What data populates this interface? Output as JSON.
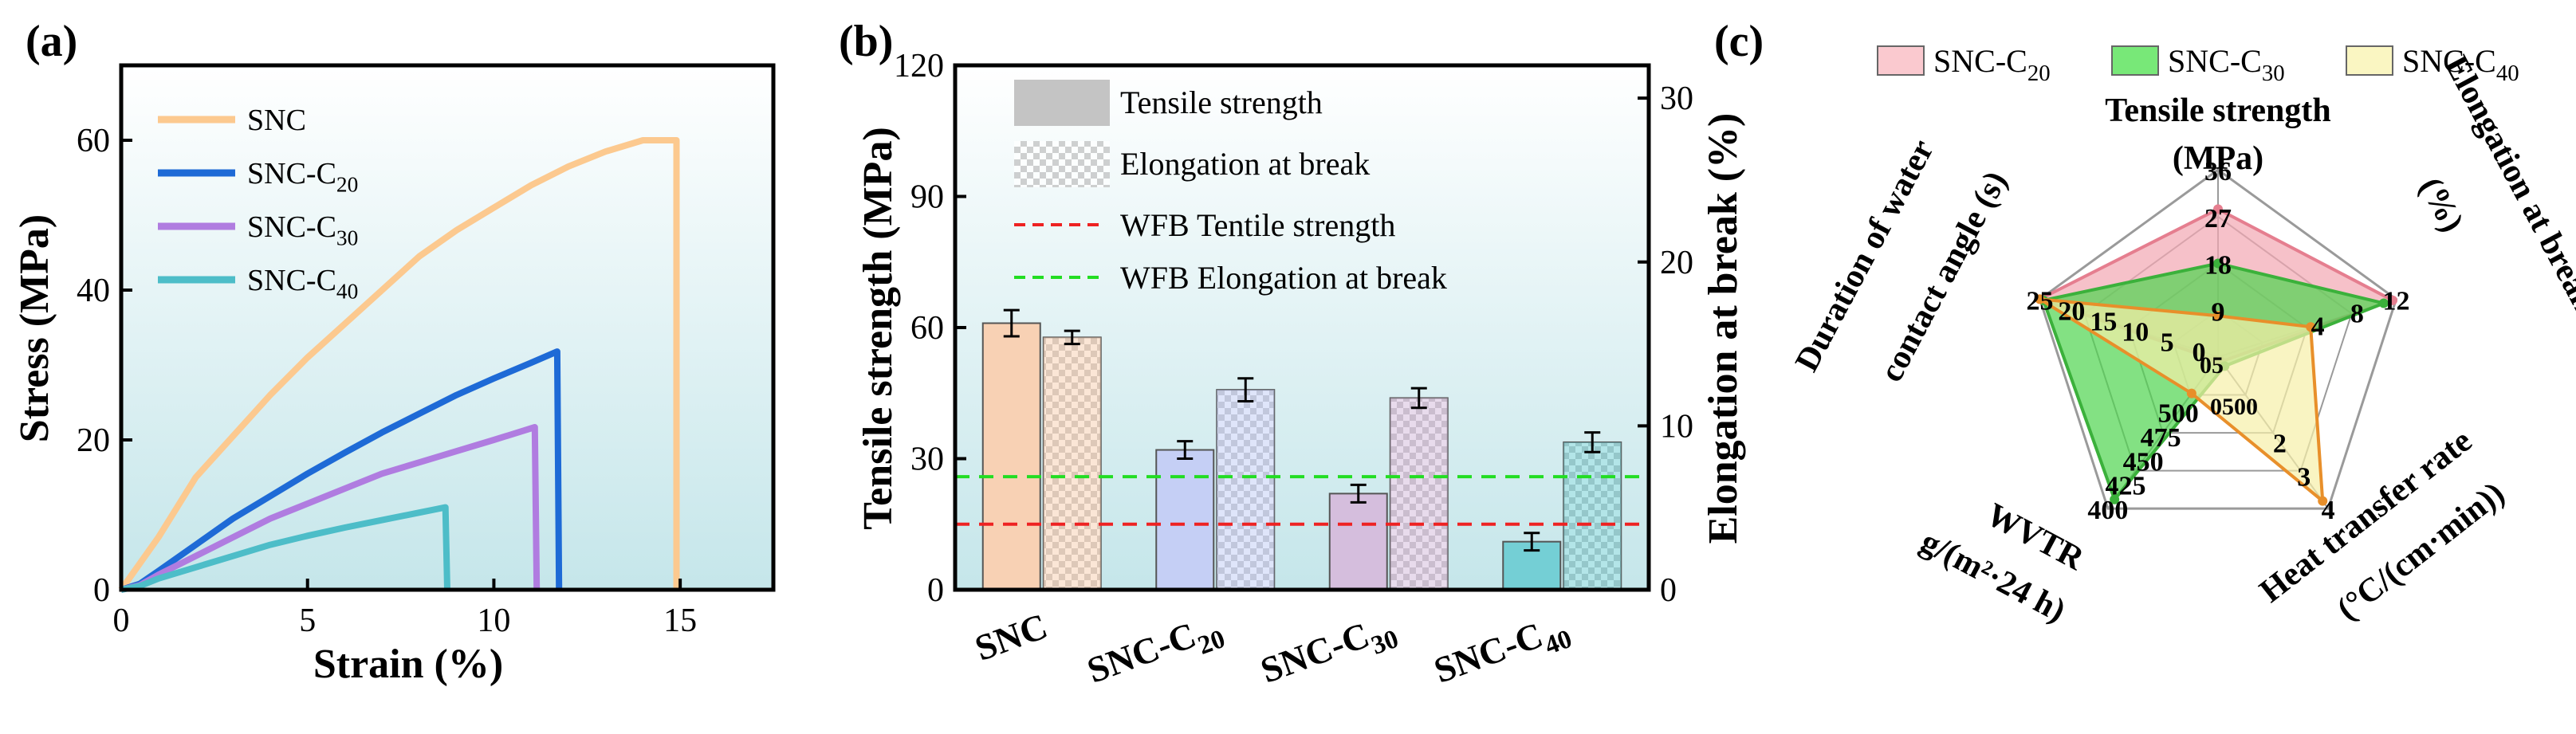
{
  "chart_data": [
    {
      "panel": "(a)",
      "type": "line",
      "title": "",
      "xlabel": "Strain (%)",
      "ylabel": "Stress (MPa)",
      "xlim": [
        0,
        17.5
      ],
      "ylim": [
        0,
        70
      ],
      "xticks": [
        "0",
        "5",
        "10",
        "15"
      ],
      "yticks": [
        "0",
        "20",
        "40",
        "60"
      ],
      "legend": "top-left",
      "colors": {
        "SNC": "#FCC98F",
        "SNC-C20": "#1E6AD6",
        "SNC-C30": "#B07CE0",
        "SNC-C40": "#4DBDC8",
        "bg_top": "#ffffff",
        "bg_bottom": "#C5E6EA"
      },
      "series": [
        {
          "name": "SNC",
          "name_base": "SNC",
          "name_sub": "",
          "color_key": "SNC",
          "points": [
            [
              0,
              0
            ],
            [
              1,
              7
            ],
            [
              2,
              15
            ],
            [
              3,
              20.5
            ],
            [
              4,
              26
            ],
            [
              5,
              31
            ],
            [
              6,
              35.5
            ],
            [
              7,
              40
            ],
            [
              8,
              44.5
            ],
            [
              9,
              48
            ],
            [
              10,
              51
            ],
            [
              11,
              54
            ],
            [
              12,
              56.5
            ],
            [
              13,
              58.5
            ],
            [
              14,
              60
            ],
            [
              14.9,
              60
            ],
            [
              14.9,
              0
            ]
          ]
        },
        {
          "name": "SNC-C20",
          "name_base": "SNC-C",
          "name_sub": "20",
          "color_key": "SNC-C20",
          "points": [
            [
              0,
              0
            ],
            [
              0.5,
              0.8
            ],
            [
              1,
              2.5
            ],
            [
              2,
              6
            ],
            [
              3,
              9.5
            ],
            [
              4,
              12.5
            ],
            [
              5,
              15.5
            ],
            [
              6,
              18.3
            ],
            [
              7,
              21
            ],
            [
              8,
              23.5
            ],
            [
              9,
              26
            ],
            [
              10,
              28.2
            ],
            [
              11,
              30.3
            ],
            [
              11.7,
              31.8
            ],
            [
              11.75,
              0
            ]
          ]
        },
        {
          "name": "SNC-C30",
          "name_base": "SNC-C",
          "name_sub": "30",
          "color_key": "SNC-C30",
          "points": [
            [
              0,
              0
            ],
            [
              0.5,
              0.6
            ],
            [
              1,
              2
            ],
            [
              2,
              4.5
            ],
            [
              3,
              7
            ],
            [
              4,
              9.5
            ],
            [
              5,
              11.5
            ],
            [
              6,
              13.5
            ],
            [
              7,
              15.5
            ],
            [
              8,
              17
            ],
            [
              9,
              18.5
            ],
            [
              10,
              20
            ],
            [
              11.1,
              21.7
            ],
            [
              11.15,
              0
            ]
          ]
        },
        {
          "name": "SNC-C40",
          "name_base": "SNC-C",
          "name_sub": "40",
          "color_key": "SNC-C40",
          "points": [
            [
              0,
              0
            ],
            [
              0.5,
              0.5
            ],
            [
              1,
              1.5
            ],
            [
              2,
              3
            ],
            [
              3,
              4.5
            ],
            [
              4,
              6
            ],
            [
              5,
              7.2
            ],
            [
              6,
              8.3
            ],
            [
              7,
              9.3
            ],
            [
              8,
              10.3
            ],
            [
              8.7,
              11
            ],
            [
              8.75,
              0
            ]
          ]
        }
      ]
    },
    {
      "panel": "(b)",
      "type": "bar",
      "title": "",
      "xlabel": "",
      "ylabel": "Tensile strength (MPa)",
      "y2label": "Elongation at break (%)",
      "ylim": [
        0,
        120
      ],
      "y2lim": [
        0,
        32
      ],
      "yticks": [
        "0",
        "30",
        "60",
        "90",
        "120"
      ],
      "y2ticks": [
        "0",
        "10",
        "20",
        "30"
      ],
      "categories": [
        {
          "base": "SNC",
          "sub": ""
        },
        {
          "base": "SNC-C",
          "sub": "20"
        },
        {
          "base": "SNC-C",
          "sub": "30"
        },
        {
          "base": "SNC-C",
          "sub": "40"
        }
      ],
      "bar_colors": [
        "#F8D1B4",
        "#C5CFF5",
        "#D5BEDD",
        "#74CFD5"
      ],
      "series": [
        {
          "name": "Tensile strength",
          "axis": "left",
          "values": [
            61,
            32,
            22,
            11
          ],
          "errors": [
            3,
            2,
            2,
            2
          ]
        },
        {
          "name": "Elongation at break",
          "axis": "right",
          "values": [
            15.4,
            12.2,
            11.7,
            9.0
          ],
          "errors": [
            0.4,
            0.7,
            0.6,
            0.6
          ]
        }
      ],
      "reference_lines": [
        {
          "name": "WFB Tentile strength",
          "axis": "left",
          "value": 15,
          "color": "#EE2222"
        },
        {
          "name": "WFB Elongation at break",
          "axis": "right",
          "value": 6.9,
          "color": "#22DD22"
        }
      ],
      "legend": "top-left"
    },
    {
      "panel": "(c)",
      "type": "radar",
      "axes": [
        {
          "label_lines": [
            "Tensile strength",
            "(MPa)"
          ],
          "ticks": [
            "9",
            "18",
            "27",
            "36"
          ]
        },
        {
          "label_lines": [
            "Elongation at break",
            "(%)"
          ],
          "ticks": [
            "4",
            "8",
            "12"
          ]
        },
        {
          "label_lines": [
            "Heat transfer rate",
            "(°C/(cm·min))"
          ],
          "ticks": [
            "2",
            "3",
            "4"
          ]
        },
        {
          "label_lines": [
            "WVTR",
            "g/(m²·24 h)"
          ],
          "ticks": [
            "400",
            "425",
            "450",
            "475",
            "500"
          ]
        },
        {
          "label_lines": [
            "Duration of water",
            "contact angle (s)"
          ],
          "ticks": [
            "25",
            "20",
            "15",
            "10",
            "5",
            "0"
          ]
        }
      ],
      "center_labels": [
        "05",
        "0500"
      ],
      "legend_items": [
        {
          "base": "SNC-C",
          "sub": "20",
          "color": "#FAC9CF"
        },
        {
          "base": "SNC-C",
          "sub": "30",
          "color": "#78E878"
        },
        {
          "base": "SNC-C",
          "sub": "40",
          "color": "#FAF6C2"
        }
      ],
      "series": [
        {
          "name": "SNC-C20",
          "values": [
            0.79,
            0.98,
            0.03,
            0.02,
            1.0
          ],
          "fill": "#F2A7B2",
          "stroke": "#E57E8F"
        },
        {
          "name": "SNC-C30",
          "values": [
            0.5,
            0.93,
            0.06,
            0.94,
            0.98
          ],
          "fill": "#4FD44F",
          "stroke": "#3BB13B"
        },
        {
          "name": "SNC-C40",
          "values": [
            0.22,
            0.52,
            0.95,
            0.24,
            1.0
          ],
          "fill": "#F6F0A8",
          "stroke": "#E88F2A"
        }
      ]
    }
  ]
}
